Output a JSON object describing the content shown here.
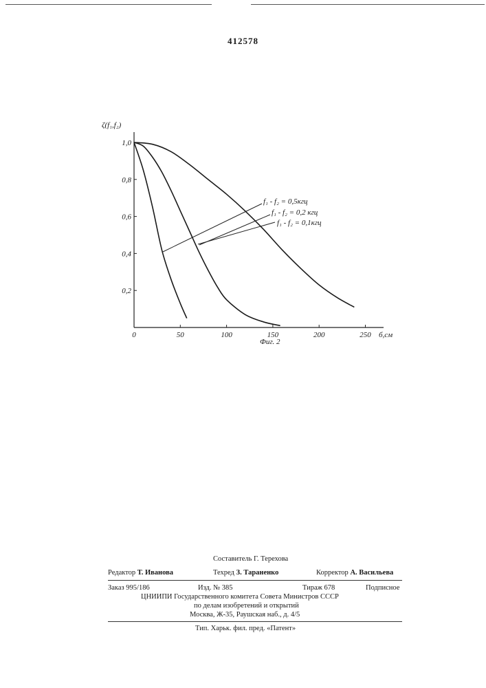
{
  "patent_number": "412578",
  "chart_data": {
    "type": "line",
    "ylabel": "ζ(f₁,f₂)",
    "xlabel": "б,см",
    "caption": "Фиг. 2",
    "xlim": [
      0,
      260
    ],
    "ylim": [
      0,
      1.05
    ],
    "x_ticks": [
      0,
      50,
      100,
      150,
      200,
      250
    ],
    "x_tick_labels": [
      "0",
      "50",
      "100",
      "150",
      "200",
      "250"
    ],
    "y_ticks": [
      0.2,
      0.4,
      0.6,
      0.8,
      1.0
    ],
    "y_tick_labels": [
      "0,2",
      "0,4",
      "0,6",
      "0,8",
      "1,0"
    ],
    "series": [
      {
        "name": "f₁ - f₂ = 0,5кгц",
        "x": [
          0,
          10,
          20,
          30,
          40,
          50,
          57
        ],
        "y": [
          1.0,
          0.85,
          0.65,
          0.42,
          0.26,
          0.13,
          0.05
        ]
      },
      {
        "name": "f₁ - f₂ = 0,2 кгц",
        "x": [
          0,
          10,
          20,
          30,
          40,
          50,
          60,
          70,
          80,
          90,
          100,
          120,
          140,
          158
        ],
        "y": [
          1.0,
          0.98,
          0.92,
          0.84,
          0.74,
          0.63,
          0.52,
          0.41,
          0.31,
          0.22,
          0.15,
          0.07,
          0.03,
          0.01
        ]
      },
      {
        "name": "f₁ - f₂ = 0,1кгц",
        "x": [
          0,
          20,
          40,
          60,
          80,
          100,
          120,
          140,
          160,
          180,
          200,
          220,
          238
        ],
        "y": [
          1.0,
          0.99,
          0.95,
          0.88,
          0.8,
          0.72,
          0.63,
          0.53,
          0.42,
          0.32,
          0.23,
          0.16,
          0.11
        ]
      }
    ]
  },
  "imprint": {
    "compiler": "Составитель Г. Терехова",
    "editor_label": "Редактор",
    "editor_name": "Т. Иванова",
    "techred_label": "Техред",
    "techred_name": "З. Тараненко",
    "corrector_label": "Корректор",
    "corrector_name": "А. Васильева",
    "order": "Заказ 995/186",
    "edition": "Изд. № 385",
    "print_run": "Тираж 678",
    "subscription": "Подписное",
    "org_line1": "ЦНИИПИ  Государственного  комитета  Совета  Министров  СССР",
    "org_line2": "по  делам  изобретений  и  открытий",
    "address": "Москва,  Ж-35,  Раушская  наб.,  д.  4/5",
    "printer": "Тип.  Харьк.  фил.  пред.  «Патент»"
  }
}
